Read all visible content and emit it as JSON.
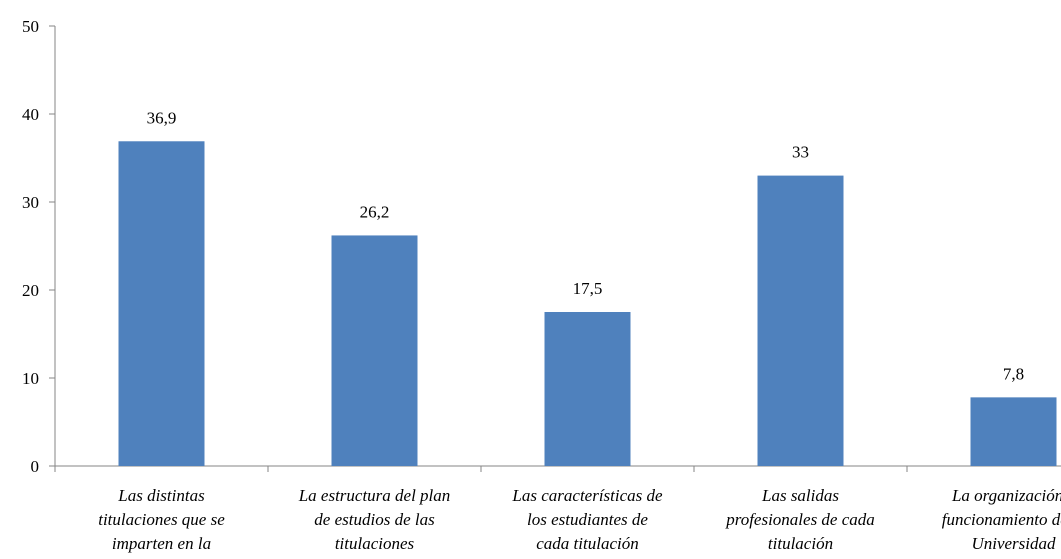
{
  "chart_data": {
    "type": "bar",
    "categories": [
      "Las distintas titulaciones que se imparten en la",
      "La estructura del plan de estudios de las titulaciones",
      "Las características de los estudiantes de cada titulación",
      "Las salidas profesionales de cada titulación",
      "La organización y funcionamiento de la Universidad"
    ],
    "category_label_lines": [
      [
        "Las distintas",
        "titulaciones que se",
        "imparten en la"
      ],
      [
        "La estructura del plan",
        "de estudios de las",
        "titulaciones"
      ],
      [
        "Las características de",
        "los estudiantes de",
        "cada titulación"
      ],
      [
        "Las salidas",
        "profesionales de cada",
        "titulación"
      ],
      [
        "La organización y",
        "funcionamiento de la",
        "Universidad"
      ]
    ],
    "values": [
      36.9,
      26.2,
      17.5,
      33,
      7.8
    ],
    "value_labels": [
      "36,9",
      "26,2",
      "17,5",
      "33",
      "7,8"
    ],
    "yticks": [
      "0",
      "10",
      "20",
      "30",
      "40",
      "50"
    ],
    "ylim": [
      0,
      50
    ],
    "title": "",
    "xlabel": "",
    "ylabel": "",
    "grid": false,
    "legend": "none",
    "bar_color": "#4F81BD",
    "axis_color": "#868686"
  }
}
